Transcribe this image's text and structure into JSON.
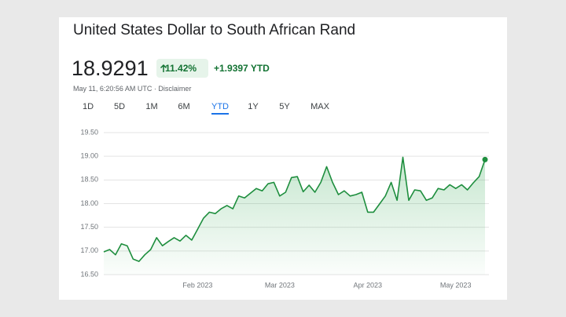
{
  "header": {
    "title": "United States Dollar to South African Rand",
    "price": "18.9291",
    "change_percent": "11.42%",
    "change_ytd": "+1.9397 YTD",
    "timestamp": "May 11, 6:20:56 AM UTC · Disclaimer"
  },
  "tabs": [
    "1D",
    "5D",
    "1M",
    "6M",
    "YTD",
    "1Y",
    "5Y",
    "MAX"
  ],
  "active_tab": 4,
  "chart_data": {
    "type": "area",
    "color": "#1e8e3e",
    "categories": [
      null,
      null,
      null,
      null,
      null,
      null,
      null,
      null,
      null,
      null,
      null,
      null,
      null,
      null,
      null,
      null,
      "Feb 2023",
      null,
      null,
      null,
      null,
      null,
      null,
      null,
      null,
      null,
      null,
      null,
      null,
      null,
      "Mar 2023",
      null,
      null,
      null,
      null,
      null,
      null,
      null,
      null,
      null,
      null,
      null,
      null,
      null,
      null,
      "Apr 2023",
      null,
      null,
      null,
      null,
      null,
      null,
      null,
      null,
      null,
      null,
      null,
      null,
      null,
      null,
      "May 2023",
      null,
      null,
      null,
      null,
      null
    ],
    "values": [
      16.98,
      17.03,
      16.92,
      17.15,
      17.11,
      16.83,
      16.78,
      16.92,
      17.03,
      17.28,
      17.11,
      17.2,
      17.28,
      17.21,
      17.33,
      17.23,
      17.46,
      17.69,
      17.82,
      17.79,
      17.89,
      17.96,
      17.89,
      18.16,
      18.12,
      18.22,
      18.32,
      18.27,
      18.42,
      18.45,
      18.16,
      18.24,
      18.55,
      18.57,
      18.25,
      18.39,
      18.24,
      18.45,
      18.78,
      18.45,
      18.19,
      18.27,
      18.16,
      18.19,
      18.24,
      17.82,
      17.82,
      17.99,
      18.16,
      18.45,
      18.07,
      18.98,
      18.07,
      18.29,
      18.27,
      18.07,
      18.12,
      18.32,
      18.29,
      18.4,
      18.32,
      18.4,
      18.29,
      18.44,
      18.57,
      18.93
    ],
    "ylim": [
      16.5,
      19.5
    ],
    "yticks": [
      {
        "value": 16.5,
        "label": "16.50"
      },
      {
        "value": 17,
        "label": "17.00"
      },
      {
        "value": 17.5,
        "label": "17.50"
      },
      {
        "value": 18,
        "label": "18.00"
      },
      {
        "value": 18.5,
        "label": "18.50"
      },
      {
        "value": 19,
        "label": "19.00"
      },
      {
        "value": 19.5,
        "label": "19.50"
      }
    ],
    "grid": true
  }
}
